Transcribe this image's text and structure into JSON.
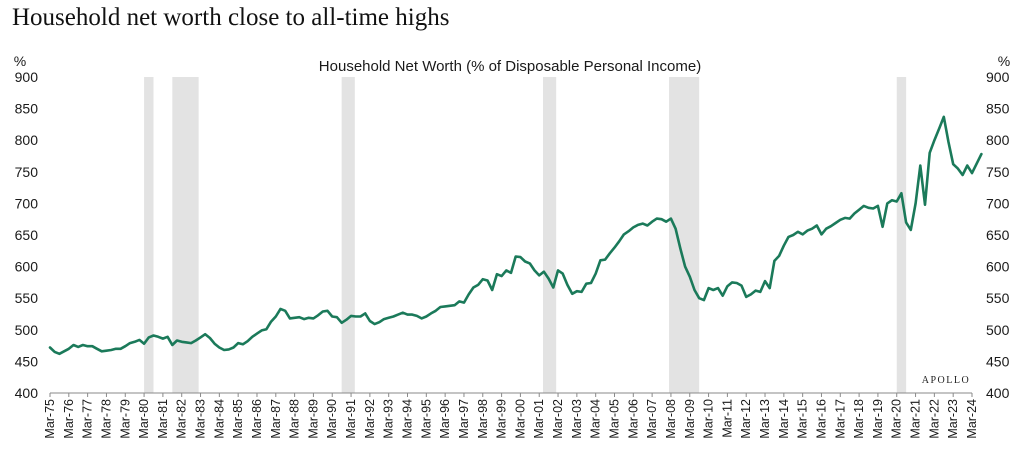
{
  "page": {
    "headline": "Household net worth close to all-time highs",
    "brand": "APOLLO"
  },
  "chart_data": {
    "type": "line",
    "title": "Household Net Worth (% of Disposable Personal Income)",
    "y_unit_left": "%",
    "y_unit_right": "%",
    "xlim": [
      1975.0,
      2024.0
    ],
    "ylim": [
      400,
      900
    ],
    "yticks": [
      400,
      450,
      500,
      550,
      600,
      650,
      700,
      750,
      800,
      850,
      900
    ],
    "xticks": [
      {
        "x": 1975,
        "label": "Mar-75"
      },
      {
        "x": 1976,
        "label": "Mar-76"
      },
      {
        "x": 1977,
        "label": "Mar-77"
      },
      {
        "x": 1978,
        "label": "Mar-78"
      },
      {
        "x": 1979,
        "label": "Mar-79"
      },
      {
        "x": 1980,
        "label": "Mar-80"
      },
      {
        "x": 1981,
        "label": "Mar-81"
      },
      {
        "x": 1982,
        "label": "Mar-82"
      },
      {
        "x": 1983,
        "label": "Mar-83"
      },
      {
        "x": 1984,
        "label": "Mar-84"
      },
      {
        "x": 1985,
        "label": "Mar-85"
      },
      {
        "x": 1986,
        "label": "Mar-86"
      },
      {
        "x": 1987,
        "label": "Mar-87"
      },
      {
        "x": 1988,
        "label": "Mar-88"
      },
      {
        "x": 1989,
        "label": "Mar-89"
      },
      {
        "x": 1990,
        "label": "Mar-90"
      },
      {
        "x": 1991,
        "label": "Mar-91"
      },
      {
        "x": 1992,
        "label": "Mar-92"
      },
      {
        "x": 1993,
        "label": "Mar-93"
      },
      {
        "x": 1994,
        "label": "Mar-94"
      },
      {
        "x": 1995,
        "label": "Mar-95"
      },
      {
        "x": 1996,
        "label": "Mar-96"
      },
      {
        "x": 1997,
        "label": "Mar-97"
      },
      {
        "x": 1998,
        "label": "Mar-98"
      },
      {
        "x": 1999,
        "label": "Mar-99"
      },
      {
        "x": 2000,
        "label": "Mar-00"
      },
      {
        "x": 2001,
        "label": "Mar-01"
      },
      {
        "x": 2002,
        "label": "Mar-02"
      },
      {
        "x": 2003,
        "label": "Mar-03"
      },
      {
        "x": 2004,
        "label": "Mar-04"
      },
      {
        "x": 2005,
        "label": "Mar-05"
      },
      {
        "x": 2006,
        "label": "Mar-06"
      },
      {
        "x": 2007,
        "label": "Mar-07"
      },
      {
        "x": 2008,
        "label": "Mar-08"
      },
      {
        "x": 2009,
        "label": "Mar-09"
      },
      {
        "x": 2010,
        "label": "Mar-10"
      },
      {
        "x": 2011,
        "label": "Mar-11"
      },
      {
        "x": 2012,
        "label": "Mar-12"
      },
      {
        "x": 2013,
        "label": "Mar-13"
      },
      {
        "x": 2014,
        "label": "Mar-14"
      },
      {
        "x": 2015,
        "label": "Mar-15"
      },
      {
        "x": 2016,
        "label": "Mar-16"
      },
      {
        "x": 2017,
        "label": "Mar-17"
      },
      {
        "x": 2018,
        "label": "Mar-18"
      },
      {
        "x": 2019,
        "label": "Mar-19"
      },
      {
        "x": 2020,
        "label": "Mar-20"
      },
      {
        "x": 2021,
        "label": "Mar-21"
      },
      {
        "x": 2022,
        "label": "Mar-22"
      },
      {
        "x": 2023,
        "label": "Mar-23"
      },
      {
        "x": 2024,
        "label": "Mar-24"
      }
    ],
    "recessions": [
      [
        1980.0,
        1980.5
      ],
      [
        1981.5,
        1982.9
      ],
      [
        1990.5,
        1991.2
      ],
      [
        2001.2,
        2001.9
      ],
      [
        2007.9,
        2009.5
      ],
      [
        2020.0,
        2020.5
      ]
    ],
    "grid": false,
    "legend": "none",
    "line_color": "#1b7a5a",
    "recession_color": "#e3e3e3",
    "series": [
      {
        "values": [
          [
            1975.0,
            472
          ],
          [
            1975.25,
            465
          ],
          [
            1975.5,
            462
          ],
          [
            1975.75,
            466
          ],
          [
            1976.0,
            470
          ],
          [
            1976.25,
            476
          ],
          [
            1976.5,
            473
          ],
          [
            1976.75,
            476
          ],
          [
            1977.0,
            474
          ],
          [
            1977.25,
            474
          ],
          [
            1977.5,
            470
          ],
          [
            1977.75,
            466
          ],
          [
            1978.0,
            467
          ],
          [
            1978.25,
            468
          ],
          [
            1978.5,
            470
          ],
          [
            1978.75,
            470
          ],
          [
            1979.0,
            474
          ],
          [
            1979.25,
            479
          ],
          [
            1979.5,
            481
          ],
          [
            1979.75,
            484
          ],
          [
            1980.0,
            478
          ],
          [
            1980.25,
            488
          ],
          [
            1980.5,
            491
          ],
          [
            1980.75,
            489
          ],
          [
            1981.0,
            486
          ],
          [
            1981.25,
            489
          ],
          [
            1981.5,
            476
          ],
          [
            1981.75,
            483
          ],
          [
            1982.0,
            481
          ],
          [
            1982.25,
            480
          ],
          [
            1982.5,
            479
          ],
          [
            1982.75,
            483
          ],
          [
            1983.0,
            488
          ],
          [
            1983.25,
            493
          ],
          [
            1983.5,
            487
          ],
          [
            1983.75,
            478
          ],
          [
            1984.0,
            472
          ],
          [
            1984.25,
            468
          ],
          [
            1984.5,
            469
          ],
          [
            1984.75,
            472
          ],
          [
            1985.0,
            479
          ],
          [
            1985.25,
            477
          ],
          [
            1985.5,
            482
          ],
          [
            1985.75,
            489
          ],
          [
            1986.0,
            494
          ],
          [
            1986.25,
            499
          ],
          [
            1986.5,
            501
          ],
          [
            1986.75,
            513
          ],
          [
            1987.0,
            521
          ],
          [
            1987.25,
            533
          ],
          [
            1987.5,
            530
          ],
          [
            1987.75,
            518
          ],
          [
            1988.0,
            519
          ],
          [
            1988.25,
            520
          ],
          [
            1988.5,
            517
          ],
          [
            1988.75,
            519
          ],
          [
            1989.0,
            518
          ],
          [
            1989.25,
            523
          ],
          [
            1989.5,
            529
          ],
          [
            1989.75,
            530
          ],
          [
            1990.0,
            521
          ],
          [
            1990.25,
            520
          ],
          [
            1990.5,
            511
          ],
          [
            1990.75,
            516
          ],
          [
            1991.0,
            522
          ],
          [
            1991.25,
            521
          ],
          [
            1991.5,
            521
          ],
          [
            1991.75,
            526
          ],
          [
            1992.0,
            514
          ],
          [
            1992.25,
            509
          ],
          [
            1992.5,
            512
          ],
          [
            1992.75,
            517
          ],
          [
            1993.0,
            519
          ],
          [
            1993.25,
            521
          ],
          [
            1993.5,
            524
          ],
          [
            1993.75,
            527
          ],
          [
            1994.0,
            524
          ],
          [
            1994.25,
            524
          ],
          [
            1994.5,
            522
          ],
          [
            1994.75,
            518
          ],
          [
            1995.0,
            521
          ],
          [
            1995.25,
            526
          ],
          [
            1995.5,
            530
          ],
          [
            1995.75,
            536
          ],
          [
            1996.0,
            537
          ],
          [
            1996.25,
            538
          ],
          [
            1996.5,
            539
          ],
          [
            1996.75,
            545
          ],
          [
            1997.0,
            543
          ],
          [
            1997.25,
            556
          ],
          [
            1997.5,
            567
          ],
          [
            1997.75,
            571
          ],
          [
            1998.0,
            580
          ],
          [
            1998.25,
            578
          ],
          [
            1998.5,
            563
          ],
          [
            1998.75,
            588
          ],
          [
            1999.0,
            585
          ],
          [
            1999.25,
            594
          ],
          [
            1999.5,
            590
          ],
          [
            1999.75,
            616
          ],
          [
            2000.0,
            615
          ],
          [
            2000.25,
            608
          ],
          [
            2000.5,
            605
          ],
          [
            2000.75,
            594
          ],
          [
            2001.0,
            586
          ],
          [
            2001.25,
            592
          ],
          [
            2001.5,
            581
          ],
          [
            2001.75,
            567
          ],
          [
            2002.0,
            594
          ],
          [
            2002.25,
            589
          ],
          [
            2002.5,
            571
          ],
          [
            2002.75,
            557
          ],
          [
            2003.0,
            561
          ],
          [
            2003.25,
            560
          ],
          [
            2003.5,
            573
          ],
          [
            2003.75,
            574
          ],
          [
            2004.0,
            589
          ],
          [
            2004.25,
            610
          ],
          [
            2004.5,
            611
          ],
          [
            2004.75,
            621
          ],
          [
            2005.0,
            630
          ],
          [
            2005.25,
            640
          ],
          [
            2005.5,
            651
          ],
          [
            2005.75,
            656
          ],
          [
            2006.0,
            662
          ],
          [
            2006.25,
            666
          ],
          [
            2006.5,
            668
          ],
          [
            2006.75,
            665
          ],
          [
            2007.0,
            671
          ],
          [
            2007.25,
            676
          ],
          [
            2007.5,
            675
          ],
          [
            2007.75,
            671
          ],
          [
            2008.0,
            676
          ],
          [
            2008.25,
            660
          ],
          [
            2008.5,
            629
          ],
          [
            2008.75,
            600
          ],
          [
            2009.0,
            584
          ],
          [
            2009.25,
            563
          ],
          [
            2009.5,
            550
          ],
          [
            2009.75,
            547
          ],
          [
            2010.0,
            566
          ],
          [
            2010.25,
            563
          ],
          [
            2010.5,
            566
          ],
          [
            2010.75,
            554
          ],
          [
            2011.0,
            569
          ],
          [
            2011.25,
            575
          ],
          [
            2011.5,
            574
          ],
          [
            2011.75,
            570
          ],
          [
            2012.0,
            552
          ],
          [
            2012.25,
            556
          ],
          [
            2012.5,
            562
          ],
          [
            2012.75,
            560
          ],
          [
            2013.0,
            577
          ],
          [
            2013.25,
            566
          ],
          [
            2013.5,
            609
          ],
          [
            2013.75,
            617
          ],
          [
            2014.0,
            633
          ],
          [
            2014.25,
            647
          ],
          [
            2014.5,
            650
          ],
          [
            2014.75,
            655
          ],
          [
            2015.0,
            651
          ],
          [
            2015.25,
            657
          ],
          [
            2015.5,
            660
          ],
          [
            2015.75,
            665
          ],
          [
            2016.0,
            651
          ],
          [
            2016.25,
            660
          ],
          [
            2016.5,
            664
          ],
          [
            2016.75,
            669
          ],
          [
            2017.0,
            674
          ],
          [
            2017.25,
            677
          ],
          [
            2017.5,
            676
          ],
          [
            2017.75,
            684
          ],
          [
            2018.0,
            690
          ],
          [
            2018.25,
            696
          ],
          [
            2018.5,
            693
          ],
          [
            2018.75,
            692
          ],
          [
            2019.0,
            696
          ],
          [
            2019.25,
            663
          ],
          [
            2019.5,
            700
          ],
          [
            2019.75,
            705
          ],
          [
            2020.0,
            703
          ],
          [
            2020.25,
            716
          ],
          [
            2020.5,
            670
          ],
          [
            2020.75,
            658
          ],
          [
            2021.0,
            700
          ],
          [
            2021.25,
            760
          ],
          [
            2021.5,
            698
          ],
          [
            2021.75,
            780
          ],
          [
            2022.0,
            800
          ],
          [
            2022.25,
            818
          ],
          [
            2022.5,
            837
          ],
          [
            2022.75,
            797
          ],
          [
            2023.0,
            762
          ],
          [
            2023.25,
            755
          ],
          [
            2023.5,
            745
          ],
          [
            2023.75,
            760
          ],
          [
            2024.0,
            748
          ],
          [
            2024.25,
            763
          ],
          [
            2024.5,
            778
          ]
        ]
      }
    ]
  }
}
